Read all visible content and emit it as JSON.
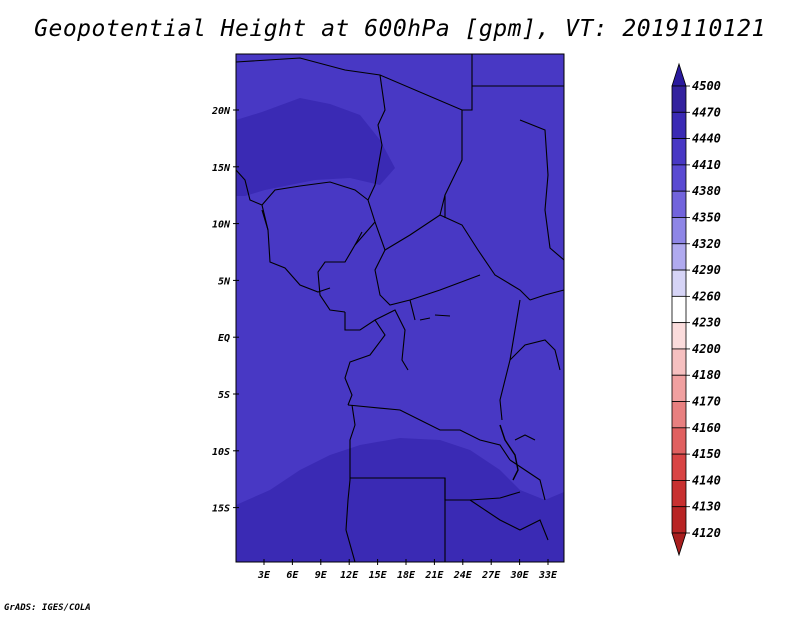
{
  "title": "Geopotential Height at 600hPa [gpm], VT: 2019110121",
  "credit": "GrADS: IGES/COLA",
  "map": {
    "lat_labels": [
      "20N",
      "15N",
      "10N",
      "5N",
      "EQ",
      "5S",
      "10S",
      "15S"
    ],
    "lon_labels": [
      "3E",
      "6E",
      "9E",
      "12E",
      "15E",
      "18E",
      "21E",
      "24E",
      "27E",
      "30E",
      "33E"
    ]
  },
  "colorbar": {
    "levels": [
      "4500",
      "4470",
      "4440",
      "4410",
      "4380",
      "4350",
      "4320",
      "4290",
      "4260",
      "4230",
      "4200",
      "4180",
      "4170",
      "4160",
      "4150",
      "4140",
      "4130",
      "4120"
    ],
    "colors": [
      "#2a1a9e",
      "#33229e",
      "#3a2ab4",
      "#4838c4",
      "#5a4ad2",
      "#7264dc",
      "#8e86e6",
      "#b0aaef",
      "#d6d4f6",
      "#ffffff",
      "#fbdcdc",
      "#f6c0c0",
      "#f0a0a0",
      "#e88080",
      "#e06060",
      "#d84444",
      "#c83030",
      "#b82424",
      "#a81e1e"
    ]
  },
  "colors": {
    "field_main": "#4838c4",
    "field_high": "#3a2ab4",
    "border": "#000000"
  }
}
